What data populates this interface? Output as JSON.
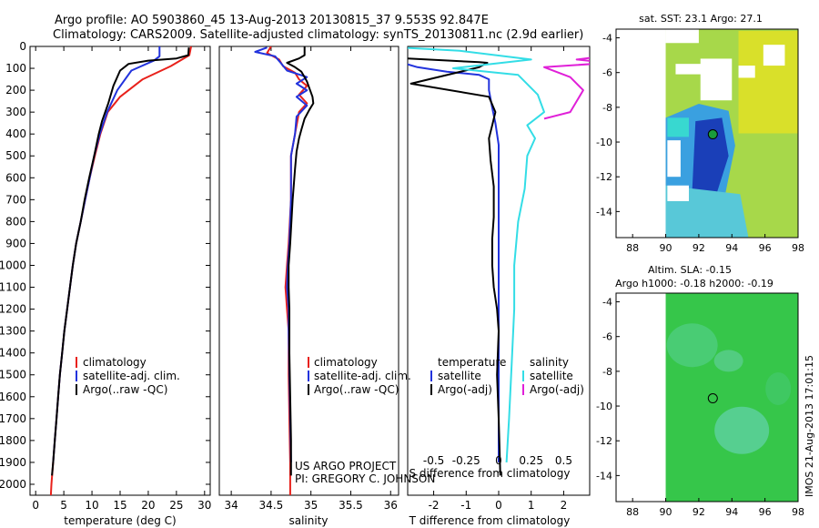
{
  "header": {
    "line1": "Argo profile: AO 5903860_45 13-Aug-2013 20130815_37 9.553S 92.847E",
    "line2": "Climatology: CARS2009. Satellite-adjusted climatology: synTS_20130811.nc (2.9d earlier)"
  },
  "colors": {
    "climatology": "#e8211b",
    "satellite": "#2233dd",
    "argo": "#000000",
    "sat_sal": "#33dde6",
    "argo_sal": "#e020d8"
  },
  "chart_data": [
    {
      "type": "line",
      "id": "temperature",
      "xlabel": "temperature (deg C)",
      "ylabel": "",
      "xlim": [
        -1,
        31
      ],
      "ylim": [
        2050,
        0
      ],
      "xticks": [
        0,
        5,
        10,
        15,
        20,
        25,
        30
      ],
      "yticks": [
        0,
        100,
        200,
        300,
        400,
        500,
        600,
        700,
        800,
        900,
        1000,
        1100,
        1200,
        1300,
        1400,
        1500,
        1600,
        1700,
        1800,
        1900,
        2000
      ],
      "legend": [
        "climatology",
        "satellite-adj. clim.",
        "Argo(..raw -QC)"
      ],
      "legend_position": "bottom-center",
      "series": [
        {
          "name": "climatology",
          "color": "#e8211b",
          "points": [
            [
              27.6,
              0
            ],
            [
              27.3,
              40
            ],
            [
              24,
              90
            ],
            [
              19,
              150
            ],
            [
              15,
              230
            ],
            [
              12.8,
              300
            ],
            [
              11.5,
              400
            ],
            [
              10.5,
              500
            ],
            [
              9.6,
              600
            ],
            [
              8.8,
              700
            ],
            [
              8,
              800
            ],
            [
              7.2,
              900
            ],
            [
              6.6,
              1000
            ],
            [
              6.1,
              1100
            ],
            [
              5.6,
              1200
            ],
            [
              5.1,
              1300
            ],
            [
              4.7,
              1400
            ],
            [
              4.3,
              1500
            ],
            [
              4,
              1600
            ],
            [
              3.7,
              1700
            ],
            [
              3.4,
              1800
            ],
            [
              3.1,
              1900
            ],
            [
              2.8,
              2000
            ],
            [
              2.7,
              2050
            ]
          ]
        },
        {
          "name": "satellite-adj. clim.",
          "color": "#2233dd",
          "points": [
            [
              22,
              0
            ],
            [
              22,
              45
            ],
            [
              21,
              65
            ],
            [
              17,
              110
            ],
            [
              14.5,
              200
            ],
            [
              12.7,
              300
            ],
            [
              11.4,
              400
            ],
            [
              10.4,
              500
            ],
            [
              9.6,
              600
            ],
            [
              8.8,
              700
            ],
            [
              8,
              800
            ],
            [
              7.2,
              900
            ],
            [
              6.6,
              1000
            ],
            [
              6.1,
              1100
            ],
            [
              5.6,
              1200
            ],
            [
              5.1,
              1300
            ],
            [
              4.7,
              1400
            ],
            [
              4.3,
              1500
            ],
            [
              4,
              1600
            ],
            [
              3.7,
              1700
            ],
            [
              3.4,
              1800
            ],
            [
              3.1,
              1900
            ]
          ]
        },
        {
          "name": "Argo(..raw -QC)",
          "color": "#000000",
          "points": [
            [
              27.2,
              5
            ],
            [
              27.1,
              40
            ],
            [
              25,
              55
            ],
            [
              20,
              65
            ],
            [
              16.5,
              80
            ],
            [
              15,
              110
            ],
            [
              13.8,
              180
            ],
            [
              12.9,
              260
            ],
            [
              11.8,
              340
            ],
            [
              11.2,
              400
            ],
            [
              10.4,
              500
            ],
            [
              9.5,
              600
            ],
            [
              8.7,
              700
            ],
            [
              8,
              800
            ],
            [
              7.2,
              900
            ],
            [
              6.6,
              1000
            ],
            [
              6.1,
              1100
            ],
            [
              5.6,
              1200
            ],
            [
              5.1,
              1300
            ],
            [
              4.7,
              1400
            ],
            [
              4.3,
              1500
            ],
            [
              4,
              1600
            ],
            [
              3.7,
              1700
            ],
            [
              3.4,
              1800
            ],
            [
              3.1,
              1900
            ],
            [
              2.9,
              1960
            ]
          ]
        }
      ]
    },
    {
      "type": "line",
      "id": "salinity",
      "xlabel": "salinity",
      "xlim": [
        33.85,
        36.1
      ],
      "ylim": [
        2050,
        0
      ],
      "xticks": [
        34,
        34.5,
        35,
        35.5,
        36
      ],
      "legend": [
        "climatology",
        "satellite-adj. clim.",
        "Argo(..raw -QC)"
      ],
      "legend_position": "bottom-center",
      "series": [
        {
          "name": "climatology",
          "color": "#e8211b",
          "points": [
            [
              34.5,
              0
            ],
            [
              34.45,
              30
            ],
            [
              34.6,
              60
            ],
            [
              34.65,
              90
            ],
            [
              34.8,
              120
            ],
            [
              34.85,
              150
            ],
            [
              34.95,
              180
            ],
            [
              34.85,
              220
            ],
            [
              34.95,
              260
            ],
            [
              34.85,
              300
            ],
            [
              34.8,
              400
            ],
            [
              34.75,
              500
            ],
            [
              34.75,
              700
            ],
            [
              34.72,
              900
            ],
            [
              34.7,
              1000
            ],
            [
              34.68,
              1100
            ],
            [
              34.7,
              1200
            ],
            [
              34.72,
              1300
            ],
            [
              34.72,
              1500
            ],
            [
              34.73,
              1700
            ],
            [
              34.74,
              1900
            ],
            [
              34.74,
              2050
            ]
          ]
        },
        {
          "name": "satellite-adj. clim.",
          "color": "#2233dd",
          "points": [
            [
              34.45,
              5
            ],
            [
              34.3,
              25
            ],
            [
              34.55,
              45
            ],
            [
              34.62,
              75
            ],
            [
              34.7,
              110
            ],
            [
              34.95,
              140
            ],
            [
              34.82,
              170
            ],
            [
              34.95,
              200
            ],
            [
              34.82,
              230
            ],
            [
              34.95,
              270
            ],
            [
              34.82,
              320
            ],
            [
              34.8,
              400
            ],
            [
              34.75,
              500
            ],
            [
              34.75,
              700
            ],
            [
              34.73,
              900
            ],
            [
              34.71,
              1000
            ],
            [
              34.7,
              1100
            ],
            [
              34.72,
              1200
            ],
            [
              34.72,
              1300
            ],
            [
              34.73,
              1500
            ],
            [
              34.74,
              1700
            ],
            [
              34.75,
              1900
            ]
          ]
        },
        {
          "name": "Argo(..raw -QC)",
          "color": "#000000",
          "points": [
            [
              34.92,
              0
            ],
            [
              34.92,
              40
            ],
            [
              34.85,
              55
            ],
            [
              34.7,
              75
            ],
            [
              34.8,
              95
            ],
            [
              34.88,
              115
            ],
            [
              34.92,
              140
            ],
            [
              34.95,
              160
            ],
            [
              34.98,
              190
            ],
            [
              35.02,
              230
            ],
            [
              35.03,
              260
            ],
            [
              34.98,
              290
            ],
            [
              34.92,
              330
            ],
            [
              34.88,
              380
            ],
            [
              34.85,
              420
            ],
            [
              34.82,
              480
            ],
            [
              34.8,
              560
            ],
            [
              34.77,
              700
            ],
            [
              34.74,
              900
            ],
            [
              34.72,
              1000
            ],
            [
              34.72,
              1100
            ],
            [
              34.73,
              1200
            ],
            [
              34.73,
              1400
            ],
            [
              34.74,
              1600
            ],
            [
              34.75,
              1800
            ],
            [
              34.75,
              1960
            ]
          ]
        }
      ]
    },
    {
      "type": "line",
      "id": "difference",
      "xlabel": "T difference from climatology",
      "x2label": "S difference from climatology",
      "xlim": [
        -2.8,
        2.8
      ],
      "ylim": [
        2050,
        0
      ],
      "xticks": [
        -2,
        -1,
        0,
        1,
        2
      ],
      "x2ticks": [
        "-0.5",
        "-0.25",
        "0",
        "0.25",
        "0.5"
      ],
      "x2values": [
        -0.5,
        -0.25,
        0,
        0.25,
        0.5
      ],
      "legend_titles": [
        "temperature",
        "salinity"
      ],
      "legend": [
        "satellite",
        "Argo(-adj)",
        "satellite",
        "Argo(-adj)"
      ],
      "legend_position": "bottom-center",
      "series": [
        {
          "name": "satellite",
          "color": "#2233dd",
          "points": [
            [
              -5.5,
              5
            ],
            [
              -5.4,
              40
            ],
            [
              -3.2,
              65
            ],
            [
              -2.5,
              95
            ],
            [
              -1.6,
              115
            ],
            [
              -0.6,
              130
            ],
            [
              -0.3,
              150
            ],
            [
              -0.3,
              200
            ],
            [
              -0.2,
              280
            ],
            [
              -0.1,
              350
            ],
            [
              0,
              450
            ],
            [
              0,
              600
            ],
            [
              0,
              900
            ],
            [
              0,
              1200
            ],
            [
              0,
              1500
            ],
            [
              0,
              1800
            ],
            [
              0,
              1900
            ]
          ]
        },
        {
          "name": "Argo(-adj)",
          "color": "#000000",
          "points": [
            [
              -2.8,
              55
            ],
            [
              -1.5,
              65
            ],
            [
              -0.6,
              72
            ],
            [
              -0.35,
              75
            ],
            [
              -0.6,
              95
            ],
            [
              -2.7,
              170
            ],
            [
              -0.3,
              230
            ],
            [
              -0.1,
              300
            ],
            [
              -0.2,
              360
            ],
            [
              -0.3,
              420
            ],
            [
              -0.25,
              520
            ],
            [
              -0.15,
              640
            ],
            [
              -0.15,
              780
            ],
            [
              -0.2,
              880
            ],
            [
              -0.2,
              1000
            ],
            [
              -0.15,
              1100
            ],
            [
              -0.05,
              1200
            ],
            [
              0,
              1300
            ],
            [
              -0.05,
              1500
            ],
            [
              0,
              1700
            ],
            [
              0.05,
              1960
            ]
          ]
        },
        {
          "name": "satellite",
          "color": "#33dde6",
          "points": [
            [
              -0.75,
              5
            ],
            [
              -0.3,
              20
            ],
            [
              0.25,
              60
            ],
            [
              -0.35,
              100
            ],
            [
              0.15,
              130
            ],
            [
              0.3,
              220
            ],
            [
              0.35,
              300
            ],
            [
              0.22,
              360
            ],
            [
              0.28,
              420
            ],
            [
              0.22,
              500
            ],
            [
              0.2,
              650
            ],
            [
              0.15,
              800
            ],
            [
              0.12,
              1000
            ],
            [
              0.12,
              1200
            ],
            [
              0.1,
              1450
            ],
            [
              0.08,
              1700
            ],
            [
              0.06,
              1900
            ]
          ]
        },
        {
          "name": "Argo(-adj)",
          "color": "#e020d8",
          "points": [
            [
              1.0,
              5
            ],
            [
              1.15,
              20
            ],
            [
              0.6,
              60
            ],
            [
              0.85,
              75
            ],
            [
              0.35,
              95
            ],
            [
              0.55,
              140
            ],
            [
              0.65,
              200
            ],
            [
              0.55,
              300
            ],
            [
              0.35,
              330
            ]
          ]
        }
      ]
    },
    {
      "type": "heatmap",
      "id": "sst_map",
      "title": "sat. SST: 23.1  Argo: 27.1",
      "xlim": [
        87,
        98
      ],
      "ylim": [
        -15.5,
        -3.5
      ],
      "xticks": [
        88,
        90,
        92,
        94,
        96,
        98
      ],
      "yticks": [
        -4,
        -6,
        -8,
        -10,
        -12,
        -14
      ],
      "marker": [
        92.847,
        -9.553
      ]
    },
    {
      "type": "heatmap",
      "id": "sla_map",
      "title_line1": "Altim. SLA: -0.15",
      "title_line2": "Argo h1000: -0.18 h2000: -0.19",
      "xlim": [
        87,
        98
      ],
      "ylim": [
        -15.5,
        -3.5
      ],
      "xticks": [
        88,
        90,
        92,
        94,
        96,
        98
      ],
      "yticks": [
        -4,
        -6,
        -8,
        -10,
        -12,
        -14
      ],
      "marker": [
        92.847,
        -9.553
      ]
    }
  ],
  "panel_text": {
    "project_line1": "US ARGO PROJECT",
    "project_line2": "PI: GREGORY C. JOHNSON",
    "side_stamp": "IMOS 21-Aug-2013 17:01:15"
  }
}
